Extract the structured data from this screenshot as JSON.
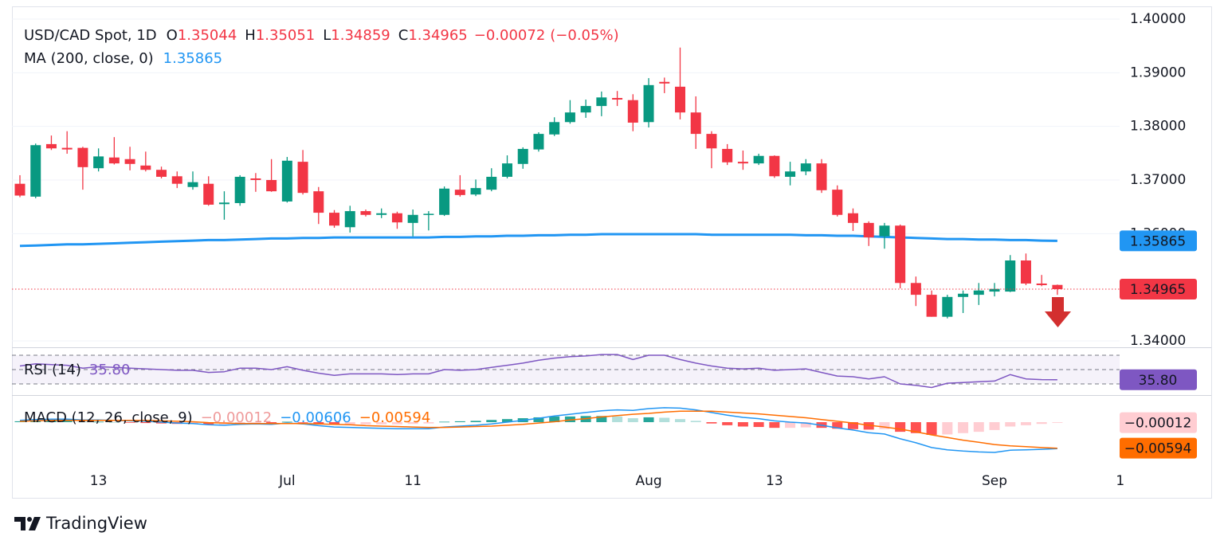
{
  "chart_data": {
    "type": "candlestick",
    "title": "USD/CAD Spot, 1D",
    "ohlc_labels": [
      "O",
      "H",
      "L",
      "C"
    ],
    "change": {
      "value": -0.00072,
      "label": "−0.00072"
    },
    "change_pct": {
      "value": -0.05,
      "label": "(−0.05%)"
    },
    "categories": [
      null,
      null,
      null,
      null,
      null,
      "13",
      null,
      null,
      null,
      null,
      null,
      null,
      null,
      null,
      null,
      null,
      null,
      "Jul",
      null,
      null,
      null,
      null,
      null,
      null,
      null,
      "11",
      null,
      null,
      null,
      null,
      null,
      null,
      null,
      null,
      null,
      null,
      null,
      null,
      null,
      null,
      "Aug",
      null,
      null,
      null,
      null,
      null,
      null,
      null,
      "13",
      null,
      null,
      null,
      null,
      null,
      null,
      null,
      null,
      null,
      null,
      null,
      null,
      null,
      "Sep",
      null,
      null,
      null,
      null,
      null,
      null,
      null,
      "1"
    ],
    "open": [
      1.3693,
      1.3669,
      1.3767,
      1.376,
      1.376,
      1.3722,
      1.3742,
      1.3739,
      1.3727,
      1.3719,
      1.3707,
      1.3687,
      1.3693,
      1.3655,
      1.3657,
      1.3703,
      1.37,
      1.366,
      1.3734,
      1.3679,
      1.3639,
      1.3612,
      1.3642,
      1.3635,
      1.3638,
      1.362,
      1.3635,
      1.3635,
      1.3682,
      1.3673,
      1.3682,
      1.3706,
      1.373,
      1.3757,
      1.3785,
      1.3808,
      1.3826,
      1.3838,
      1.3853,
      1.3849,
      1.3808,
      1.3883,
      1.3874,
      1.3826,
      1.3786,
      1.3758,
      1.3734,
      1.3731,
      1.3745,
      1.3706,
      1.3716,
      1.3731,
      1.3682,
      1.3638,
      1.362,
      1.3595,
      1.3615,
      1.3508,
      1.3486,
      1.3445,
      1.3482,
      1.3486,
      1.3492,
      1.3492,
      1.355,
      1.3507,
      1.35044,
      null,
      null,
      null,
      null
    ],
    "high": [
      1.3709,
      1.3768,
      1.3783,
      1.3791,
      1.3762,
      1.3759,
      1.378,
      1.3762,
      1.3753,
      1.3725,
      1.3716,
      1.3716,
      1.3707,
      1.3679,
      1.3709,
      1.3713,
      1.3739,
      1.3743,
      1.3756,
      1.3687,
      1.3644,
      1.3652,
      1.3645,
      1.3647,
      1.3641,
      1.3645,
      1.3642,
      1.3688,
      1.3709,
      1.3701,
      1.3722,
      1.3746,
      1.3761,
      1.3789,
      1.3817,
      1.3849,
      1.385,
      1.3865,
      1.3866,
      1.386,
      1.389,
      1.3891,
      1.3947,
      1.3856,
      1.3791,
      1.3767,
      1.3755,
      1.3749,
      1.3746,
      1.3734,
      1.3739,
      1.3739,
      1.369,
      1.3647,
      1.3623,
      1.362,
      1.3617,
      1.352,
      1.3494,
      1.3486,
      1.3494,
      1.3508,
      1.3508,
      1.356,
      1.3563,
      1.3523,
      1.35051,
      null,
      null,
      null,
      null
    ],
    "low": [
      1.3668,
      1.3666,
      1.3756,
      1.3749,
      1.3682,
      1.3716,
      1.3729,
      1.3718,
      1.3716,
      1.3703,
      1.3685,
      1.3682,
      1.3652,
      1.3626,
      1.3652,
      1.3678,
      1.3678,
      1.3658,
      1.3673,
      1.3618,
      1.3611,
      1.3602,
      1.3632,
      1.3629,
      1.3609,
      1.3595,
      1.3606,
      1.3633,
      1.3669,
      1.367,
      1.3679,
      1.3703,
      1.3721,
      1.3753,
      1.3782,
      1.3805,
      1.3816,
      1.3819,
      1.3838,
      1.3791,
      1.3798,
      1.3862,
      1.3813,
      1.3758,
      1.3722,
      1.3728,
      1.3719,
      1.3728,
      1.3704,
      1.369,
      1.3709,
      1.3676,
      1.3632,
      1.3605,
      1.3577,
      1.3572,
      1.3498,
      1.3465,
      1.3445,
      1.3442,
      1.3452,
      1.3467,
      1.3483,
      1.3491,
      1.3504,
      1.3502,
      1.34859,
      null,
      null,
      null,
      null
    ],
    "close": [
      1.3671,
      1.3765,
      1.3759,
      1.3757,
      1.3724,
      1.3744,
      1.3731,
      1.373,
      1.3719,
      1.3706,
      1.3693,
      1.3696,
      1.3654,
      1.3658,
      1.3706,
      1.37,
      1.3679,
      1.3736,
      1.3676,
      1.3639,
      1.3615,
      1.3642,
      1.3635,
      1.3638,
      1.3621,
      1.3635,
      1.3637,
      1.3684,
      1.3672,
      1.3685,
      1.3706,
      1.3731,
      1.3758,
      1.3786,
      1.3808,
      1.3826,
      1.3838,
      1.3854,
      1.385,
      1.3807,
      1.3877,
      1.388,
      1.3826,
      1.3786,
      1.3759,
      1.3733,
      1.3731,
      1.3745,
      1.3707,
      1.3716,
      1.3731,
      1.3681,
      1.3635,
      1.362,
      1.3593,
      1.3615,
      1.3508,
      1.3486,
      1.3445,
      1.3482,
      1.3488,
      1.3494,
      1.3497,
      1.355,
      1.3507,
      1.3504,
      1.34965,
      null,
      null,
      null,
      null
    ],
    "up_color": "#089981",
    "down_color": "#f23645",
    "ylim": [
      1.33896,
      1.40134
    ],
    "yticks": [
      {
        "value": 1.4,
        "label": "1.40000"
      },
      {
        "value": 1.39,
        "label": "1.39000"
      },
      {
        "value": 1.38,
        "label": "1.38000"
      },
      {
        "value": 1.37,
        "label": "1.37000"
      },
      {
        "value": 1.36,
        "label": "1.36000"
      },
      {
        "value": 1.34,
        "label": "1.34000"
      }
    ],
    "grid": true,
    "ma": {
      "name": "MA (200, close, 0)",
      "color": "#2196f3",
      "values": [
        1.3577,
        1.3578,
        1.3579,
        1.358,
        1.358,
        1.3581,
        1.3582,
        1.3583,
        1.3584,
        1.3585,
        1.3586,
        1.3587,
        1.3588,
        1.3588,
        1.3589,
        1.359,
        1.3591,
        1.3591,
        1.3592,
        1.3592,
        1.3593,
        1.3593,
        1.3593,
        1.3593,
        1.3593,
        1.3593,
        1.3593,
        1.3594,
        1.3594,
        1.3595,
        1.3595,
        1.3596,
        1.3596,
        1.3597,
        1.3597,
        1.3598,
        1.3598,
        1.3599,
        1.3599,
        1.3599,
        1.3599,
        1.3599,
        1.3599,
        1.3599,
        1.3598,
        1.3598,
        1.3598,
        1.3598,
        1.3598,
        1.3598,
        1.3597,
        1.3597,
        1.3596,
        1.3596,
        1.3595,
        1.3594,
        1.3593,
        1.3592,
        1.3591,
        1.359,
        1.359,
        1.3589,
        1.3589,
        1.3588,
        1.3588,
        1.3587,
        1.35865,
        null,
        null,
        null,
        null
      ]
    },
    "rsi": {
      "name": "RSI (14)",
      "color": "#7e57c2",
      "levels": [
        70,
        50,
        30
      ],
      "ylim": [
        14.4,
        80
      ],
      "values": [
        55,
        58,
        57,
        56,
        52,
        54,
        53,
        52,
        51,
        50,
        49,
        49,
        46,
        47,
        52,
        52,
        50,
        54,
        49,
        45,
        42,
        44,
        44,
        44,
        43,
        44,
        44,
        50,
        49,
        50,
        53,
        56,
        59,
        63,
        66,
        68,
        69,
        71,
        71,
        64,
        70,
        70,
        64,
        59,
        55,
        52,
        51,
        52,
        49,
        50,
        51,
        46,
        41,
        40,
        37,
        40,
        30,
        28,
        25,
        31,
        32,
        33,
        34,
        43,
        37,
        36,
        35.8,
        null,
        null,
        null,
        null
      ],
      "value_labels": [
        null,
        null,
        null,
        null,
        null,
        null,
        null,
        null,
        null,
        null,
        null,
        null,
        null,
        null,
        null,
        null,
        null,
        null,
        null,
        null,
        null,
        null,
        null,
        null,
        null,
        null,
        null,
        null,
        null,
        null,
        null,
        null,
        null,
        null,
        null,
        null,
        null,
        null,
        null,
        null,
        null,
        null,
        null,
        null,
        null,
        null,
        null,
        null,
        null,
        null,
        null,
        null,
        null,
        null,
        null,
        null,
        null,
        null,
        null,
        null,
        null,
        null,
        null,
        null,
        null,
        null,
        "35.80",
        null,
        null,
        null,
        null
      ]
    },
    "macd": {
      "name": "MACD (12, 26, close, 9)",
      "ylim": [
        -0.01127,
        0.006
      ],
      "histogram": {
        "colors": [
          "#26a69a",
          "#b2dfdb",
          "#ff5252",
          "#ffcdd2"
        ],
        "label_color": "#ef9a9a",
        "values": [
          0.0002,
          0.0003,
          0.0003,
          0.0003,
          0.0001,
          0.0001,
          0,
          -0.0001,
          -0.0002,
          -0.0003,
          -0.0004,
          -0.0004,
          -0.0005,
          -0.0005,
          -0.0002,
          -0.0001,
          -0.0002,
          0.0001,
          -0.0001,
          -0.0004,
          -0.0006,
          -0.0006,
          -0.0005,
          -0.0005,
          -0.0005,
          -0.0004,
          -0.0003,
          0.0001,
          0.0002,
          0.0003,
          0.0005,
          0.0007,
          0.0009,
          0.0011,
          0.0013,
          0.0013,
          0.0014,
          0.0014,
          0.0013,
          0.0009,
          0.0011,
          0.001,
          0.0007,
          0.0003,
          -0.0003,
          -0.0007,
          -0.001,
          -0.0011,
          -0.0013,
          -0.0013,
          -0.0012,
          -0.0013,
          -0.0015,
          -0.0016,
          -0.0017,
          -0.0016,
          -0.0022,
          -0.0025,
          -0.0029,
          -0.0028,
          -0.0025,
          -0.0022,
          -0.0018,
          -0.001,
          -0.0007,
          -0.0004,
          -0.00012,
          null,
          null,
          null,
          null
        ],
        "value_labels": [
          null,
          null,
          null,
          null,
          null,
          null,
          null,
          null,
          null,
          null,
          null,
          null,
          null,
          null,
          null,
          null,
          null,
          null,
          null,
          null,
          null,
          null,
          null,
          null,
          null,
          null,
          null,
          null,
          null,
          null,
          null,
          null,
          null,
          null,
          null,
          null,
          null,
          null,
          null,
          null,
          null,
          null,
          null,
          null,
          null,
          null,
          null,
          null,
          null,
          null,
          null,
          null,
          null,
          null,
          null,
          null,
          null,
          null,
          null,
          null,
          null,
          null,
          null,
          null,
          null,
          null,
          "−0.00012",
          null,
          null,
          null,
          null
        ]
      },
      "macd_line": {
        "color": "#2196f3",
        "values": [
          0.0004,
          0.0006,
          0.0007,
          0.0007,
          0.0005,
          0.0005,
          0.0004,
          0.0003,
          0.0002,
          0,
          -0.0002,
          -0.0003,
          -0.0006,
          -0.0007,
          -0.0005,
          -0.0004,
          -0.0005,
          -0.0002,
          -0.0004,
          -0.0008,
          -0.0011,
          -0.0012,
          -0.0013,
          -0.0014,
          -0.0015,
          -0.0015,
          -0.0015,
          -0.0011,
          -0.0009,
          -0.0007,
          -0.0004,
          0,
          0.0004,
          0.0009,
          0.0014,
          0.0018,
          0.0022,
          0.0026,
          0.0028,
          0.0027,
          0.0031,
          0.0033,
          0.0032,
          0.0028,
          0.0022,
          0.0016,
          0.0011,
          0.0008,
          0.0003,
          0,
          -0.0002,
          -0.0007,
          -0.0013,
          -0.0018,
          -0.0024,
          -0.0027,
          -0.0038,
          -0.0047,
          -0.0058,
          -0.0063,
          -0.0066,
          -0.0068,
          -0.0069,
          -0.0064,
          -0.0063,
          -0.0062,
          -0.00606,
          null,
          null,
          null,
          null
        ],
        "value_labels": [
          null,
          null,
          null,
          null,
          null,
          null,
          null,
          null,
          null,
          null,
          null,
          null,
          null,
          null,
          null,
          null,
          null,
          null,
          null,
          null,
          null,
          null,
          null,
          null,
          null,
          null,
          null,
          null,
          null,
          null,
          null,
          null,
          null,
          null,
          null,
          null,
          null,
          null,
          null,
          null,
          null,
          null,
          null,
          null,
          null,
          null,
          null,
          null,
          null,
          null,
          null,
          null,
          null,
          null,
          null,
          null,
          null,
          null,
          null,
          null,
          null,
          null,
          null,
          null,
          null,
          null,
          "−0.00606",
          null,
          null,
          null,
          null
        ]
      },
      "signal": {
        "color": "#ff6d00",
        "values": [
          0.0002,
          0.0003,
          0.0004,
          0.0004,
          0.0004,
          0.0004,
          0.0004,
          0.0004,
          0.0004,
          0.0003,
          0.0002,
          0.0001,
          -0.0001,
          -0.0002,
          -0.0003,
          -0.0003,
          -0.0003,
          -0.0003,
          -0.0003,
          -0.0004,
          -0.0005,
          -0.0006,
          -0.0008,
          -0.0009,
          -0.001,
          -0.0011,
          -0.0012,
          -0.0012,
          -0.0011,
          -0.001,
          -0.0009,
          -0.0007,
          -0.0005,
          -0.0002,
          0.0001,
          0.0005,
          0.0008,
          0.0012,
          0.0015,
          0.0018,
          0.002,
          0.0023,
          0.0025,
          0.0025,
          0.0025,
          0.0023,
          0.0021,
          0.0019,
          0.0016,
          0.0013,
          0.001,
          0.0006,
          0.0002,
          -0.0002,
          -0.0007,
          -0.0011,
          -0.0016,
          -0.0022,
          -0.0029,
          -0.0035,
          -0.0041,
          -0.0046,
          -0.0051,
          -0.0054,
          -0.0056,
          -0.0058,
          -0.00594,
          null,
          null,
          null,
          null
        ],
        "value_labels": [
          null,
          null,
          null,
          null,
          null,
          null,
          null,
          null,
          null,
          null,
          null,
          null,
          null,
          null,
          null,
          null,
          null,
          null,
          null,
          null,
          null,
          null,
          null,
          null,
          null,
          null,
          null,
          null,
          null,
          null,
          null,
          null,
          null,
          null,
          null,
          null,
          null,
          null,
          null,
          null,
          null,
          null,
          null,
          null,
          null,
          null,
          null,
          null,
          null,
          null,
          null,
          null,
          null,
          null,
          null,
          null,
          null,
          null,
          null,
          null,
          null,
          null,
          null,
          null,
          null,
          null,
          "−0.00594",
          null,
          null,
          null,
          null
        ]
      }
    },
    "brand": "TradingView"
  }
}
